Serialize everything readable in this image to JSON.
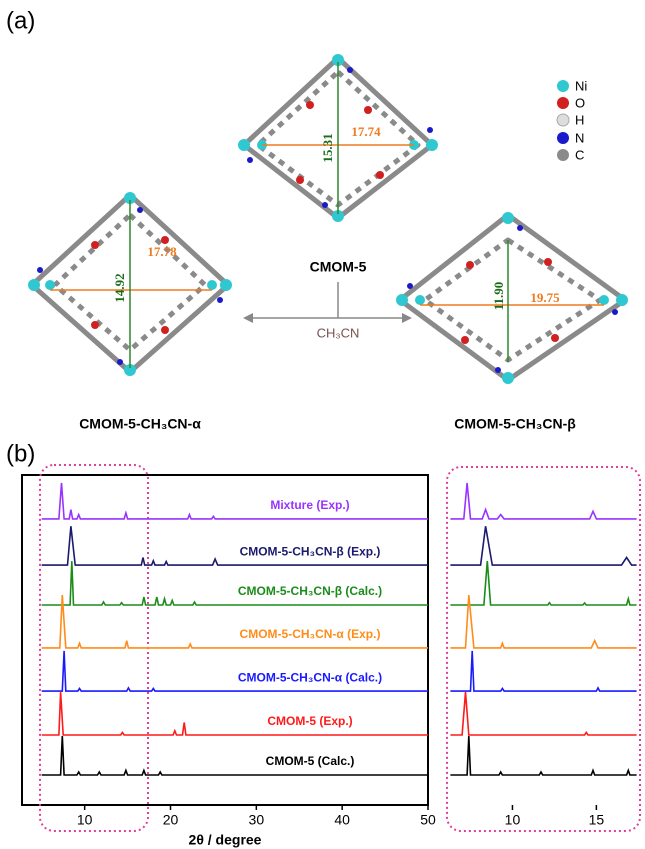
{
  "panel_a": {
    "label": "(a)",
    "structures": [
      {
        "name": "CMOM-5",
        "width": "17.74",
        "height": "15.31"
      },
      {
        "name": "CMOM-5-CH₃CN-α",
        "width": "17.78",
        "height": "14.92"
      },
      {
        "name": "CMOM-5-CH₃CN-β",
        "width": "19.75",
        "height": "11.90"
      }
    ],
    "legend": [
      "Ni",
      "O",
      "H",
      "N",
      "C"
    ],
    "reagent": "CH₃CN"
  },
  "panel_b": {
    "label": "(b)"
  },
  "chart_data": [
    {
      "type": "line",
      "xlabel": "2θ / degree",
      "xlim": [
        2.7,
        50
      ],
      "ylim": [
        0,
        100
      ],
      "xticks": [
        10,
        20,
        30,
        40,
        50
      ],
      "series": [
        {
          "name": "Mixture (Exp.)",
          "color": "#9933ff",
          "x": [
            5,
            7.0,
            7.3,
            7.6,
            8.2,
            8.4,
            8.6,
            9.1,
            9.3,
            9.5,
            14.6,
            14.8,
            15.0,
            22.0,
            22.2,
            22.4,
            24.8,
            25.0,
            25.2,
            50
          ],
          "values": [
            86.7,
            86.7,
            97.6,
            86.7,
            86.7,
            89.5,
            86.7,
            86.7,
            88,
            86.7,
            86.7,
            88.5,
            86.7,
            86.7,
            88,
            86.7,
            86.7,
            87.5,
            86.7,
            86.7
          ]
        },
        {
          "name": "CMOM-5-CH₃CN-β (Exp.)",
          "color": "#1a1a6e",
          "x": [
            5,
            8.0,
            8.4,
            8.9,
            16.6,
            16.8,
            17.0,
            17.8,
            18.0,
            18.2,
            19.3,
            19.5,
            19.7,
            24.9,
            25.2,
            25.5,
            50
          ],
          "values": [
            72.7,
            72.7,
            84.5,
            72.7,
            72.7,
            75,
            72.7,
            72.7,
            74,
            72.7,
            72.7,
            73.8,
            72.7,
            72.7,
            74.5,
            72.7,
            72.7
          ]
        },
        {
          "name": "CMOM-5-CH₃CN-β (Calc.)",
          "color": "#1a8c1a",
          "x": [
            5,
            8.3,
            8.5,
            8.7,
            12.0,
            12.2,
            12.4,
            14.1,
            14.3,
            14.5,
            16.7,
            16.9,
            17.1,
            18.2,
            18.4,
            18.6,
            19.1,
            19.3,
            19.5,
            20.0,
            20.2,
            20.4,
            22.6,
            22.8,
            23.0,
            50
          ],
          "values": [
            60.6,
            60.6,
            73.9,
            60.6,
            60.6,
            61.5,
            60.6,
            60.6,
            61.3,
            60.6,
            60.6,
            63,
            60.6,
            60.6,
            63,
            60.6,
            60.6,
            62.5,
            60.6,
            60.6,
            62,
            60.6,
            60.6,
            61.5,
            60.6,
            60.6
          ]
        },
        {
          "name": "CMOM-5-CH₃CN-α (Exp.)",
          "color": "#ff8c1a",
          "x": [
            5,
            7.1,
            7.4,
            7.8,
            9.2,
            9.4,
            9.6,
            14.7,
            14.9,
            15.1,
            22.1,
            22.3,
            22.5,
            50
          ],
          "values": [
            47.6,
            47.6,
            63.6,
            47.6,
            47.6,
            49,
            47.6,
            47.6,
            49.8,
            47.6,
            47.6,
            48.8,
            47.6,
            47.6
          ]
        },
        {
          "name": "CMOM-5-CH₃CN-α (Calc.)",
          "color": "#1a1aff",
          "x": [
            5,
            7.4,
            7.6,
            7.8,
            9.2,
            9.4,
            9.6,
            14.9,
            15.1,
            15.3,
            17.8,
            18.0,
            18.2,
            50
          ],
          "values": [
            34.5,
            34.5,
            46.7,
            34.5,
            34.5,
            35.3,
            34.5,
            34.5,
            35.5,
            34.5,
            34.5,
            35.3,
            34.5,
            34.5
          ]
        },
        {
          "name": "CMOM-5 (Exp.)",
          "color": "#ff1a1a",
          "x": [
            5,
            7.0,
            7.2,
            7.5,
            14.2,
            14.4,
            14.6,
            20.3,
            20.5,
            20.7,
            21.4,
            21.6,
            21.8,
            50
          ],
          "values": [
            21.2,
            21.2,
            34.2,
            21.2,
            21.2,
            22,
            21.2,
            21.2,
            22.5,
            21.2,
            21.2,
            25,
            21.2,
            21.2
          ]
        },
        {
          "name": "CMOM-5 (Calc.)",
          "color": "#000000",
          "x": [
            5,
            7.2,
            7.4,
            7.6,
            9.1,
            9.3,
            9.5,
            11.5,
            11.7,
            11.9,
            14.6,
            14.8,
            15.0,
            16.7,
            16.9,
            17.1,
            18.6,
            18.8,
            19.0,
            50
          ],
          "values": [
            9.1,
            9.1,
            20.9,
            9.1,
            9.1,
            10,
            9.1,
            9.1,
            10,
            9.1,
            9.1,
            10.5,
            9.1,
            9.1,
            10.5,
            9.1,
            9.1,
            10,
            9.1,
            9.1
          ]
        }
      ]
    },
    {
      "type": "line",
      "xlim": [
        6.1,
        17.6
      ],
      "ylim": [
        0,
        100
      ],
      "xticks": [
        10,
        15
      ],
      "series": [
        {
          "color": "#9933ff",
          "x": [
            6.3,
            7.1,
            7.3,
            7.5,
            8.2,
            8.4,
            8.6,
            9.1,
            9.3,
            9.5,
            14.6,
            14.8,
            15.0,
            17.4
          ],
          "values": [
            86.7,
            86.7,
            97.6,
            86.7,
            86.7,
            89.5,
            86.7,
            86.7,
            88,
            86.7,
            86.7,
            89,
            86.7,
            86.7
          ]
        },
        {
          "color": "#1a1a6e",
          "x": [
            6.3,
            8.1,
            8.4,
            8.8,
            16.5,
            16.8,
            17.1,
            17.4
          ],
          "values": [
            72.7,
            72.7,
            84.5,
            72.7,
            72.7,
            75,
            72.7,
            72.7
          ]
        },
        {
          "color": "#1a8c1a",
          "x": [
            6.3,
            8.3,
            8.5,
            8.7,
            12.1,
            12.2,
            12.3,
            14.2,
            14.3,
            14.4,
            16.8,
            16.9,
            17.0,
            17.4
          ],
          "values": [
            60.6,
            60.6,
            73.9,
            60.6,
            60.6,
            61.3,
            60.6,
            60.6,
            61.2,
            60.6,
            60.6,
            62.5,
            60.6,
            60.6
          ]
        },
        {
          "color": "#ff8c1a",
          "x": [
            6.3,
            7.2,
            7.4,
            7.7,
            9.3,
            9.4,
            9.5,
            14.7,
            14.9,
            15.1,
            17.4
          ],
          "values": [
            47.6,
            47.6,
            63.6,
            47.6,
            47.6,
            49,
            47.6,
            47.6,
            49.8,
            47.6,
            47.6
          ]
        },
        {
          "color": "#1a1aff",
          "x": [
            6.3,
            7.5,
            7.6,
            7.7,
            9.3,
            9.4,
            9.5,
            15.0,
            15.1,
            15.2,
            17.4
          ],
          "values": [
            34.5,
            34.5,
            46.7,
            34.5,
            34.5,
            35.3,
            34.5,
            34.5,
            35.5,
            34.5,
            34.5
          ]
        },
        {
          "color": "#ff1a1a",
          "x": [
            6.3,
            7.0,
            7.2,
            7.4,
            14.3,
            14.4,
            14.5,
            17.4
          ],
          "values": [
            21.2,
            21.2,
            34.2,
            21.2,
            21.2,
            22,
            21.2,
            21.2
          ]
        },
        {
          "color": "#000000",
          "x": [
            6.3,
            7.3,
            7.4,
            7.5,
            9.2,
            9.3,
            9.4,
            11.6,
            11.7,
            11.8,
            14.7,
            14.8,
            14.9,
            16.8,
            16.9,
            17.0,
            17.4
          ],
          "values": [
            9.1,
            9.1,
            20.9,
            9.1,
            9.1,
            10,
            9.1,
            9.1,
            10,
            9.1,
            9.1,
            10.5,
            9.1,
            9.1,
            10.5,
            9.1,
            9.1
          ]
        }
      ]
    }
  ]
}
